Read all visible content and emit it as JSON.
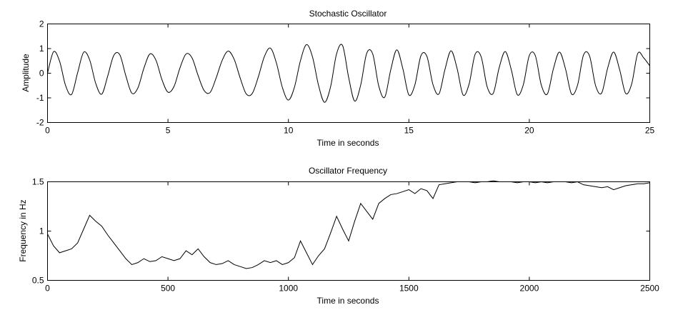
{
  "chart_data": [
    {
      "type": "line",
      "title": "Stochastic Oscillator",
      "xlabel": "Time in seconds",
      "ylabel": "Amplitude",
      "xlim": [
        0,
        25
      ],
      "ylim": [
        -2,
        2
      ],
      "xticks": [
        "0",
        "5",
        "10",
        "15",
        "20",
        "25"
      ],
      "yticks": [
        "2",
        "1",
        "0",
        "-1",
        "-2"
      ],
      "grid": false,
      "series": [
        {
          "x": [
            0,
            0.25,
            0.5,
            0.75,
            1.0,
            1.25,
            1.5,
            1.75,
            2.0,
            2.25,
            2.5,
            2.75,
            3.0,
            3.25,
            3.5,
            3.75,
            4.0,
            4.25,
            4.5,
            4.75,
            5.0,
            5.25,
            5.5,
            5.75,
            6.0,
            6.25,
            6.5,
            6.75,
            7.0,
            7.25,
            7.5,
            7.75,
            8.0,
            8.25,
            8.5,
            8.75,
            9.0,
            9.25,
            9.5,
            9.75,
            10.0,
            10.25,
            10.5,
            10.75,
            11.0,
            11.25,
            11.5,
            11.75,
            12.0,
            12.25,
            12.5,
            12.75,
            13.0,
            13.25,
            13.5,
            13.75,
            14.0,
            14.25,
            14.5,
            14.75,
            15.0,
            15.25,
            15.5,
            15.75,
            16.0,
            16.25,
            16.5,
            16.75,
            17.0,
            17.25,
            17.5,
            17.75,
            18.0,
            18.25,
            18.5,
            18.75,
            19.0,
            19.25,
            19.5,
            19.75,
            20.0,
            20.25,
            20.5,
            20.75,
            21.0,
            21.25,
            21.5,
            21.75,
            22.0,
            22.25,
            22.5,
            22.75,
            23.0,
            23.25,
            23.5,
            23.75,
            24.0,
            24.25,
            24.5,
            24.75,
            25.0
          ],
          "values": [
            0,
            0.87,
            0.49,
            -0.5,
            -0.86,
            0.02,
            0.85,
            0.54,
            -0.41,
            -0.85,
            -0.11,
            0.72,
            0.75,
            -0.1,
            -0.81,
            -0.6,
            0.2,
            0.78,
            0.53,
            -0.26,
            -0.77,
            -0.54,
            0.22,
            0.78,
            0.62,
            -0.09,
            -0.7,
            -0.78,
            -0.19,
            0.52,
            0.9,
            0.56,
            -0.2,
            -0.84,
            -0.82,
            -0.15,
            0.67,
            1.02,
            0.42,
            -0.58,
            -1.09,
            -0.57,
            0.51,
            1.16,
            0.66,
            -0.49,
            -1.18,
            -0.55,
            0.79,
            1.12,
            -0.17,
            -1.13,
            -0.48,
            0.81,
            0.78,
            -0.52,
            -0.97,
            0.15,
            0.95,
            0.18,
            -0.88,
            -0.47,
            0.71,
            0.68,
            -0.46,
            -0.84,
            0.16,
            0.91,
            0.2,
            -0.88,
            -0.44,
            0.77,
            0.67,
            -0.55,
            -0.82,
            0.23,
            0.88,
            0.15,
            -0.87,
            -0.47,
            0.72,
            0.71,
            -0.49,
            -0.84,
            0.18,
            0.86,
            0.18,
            -0.84,
            -0.49,
            0.74,
            0.7,
            -0.5,
            -0.81,
            0.2,
            0.86,
            0.14,
            -0.82,
            -0.43,
            0.8,
            0.62,
            0.3
          ]
        }
      ]
    },
    {
      "type": "line",
      "title": "Oscillator Frequency",
      "xlabel": "Time in seconds",
      "ylabel": "Frequency in Hz",
      "xlim": [
        0,
        2500
      ],
      "ylim": [
        0.5,
        1.5
      ],
      "xticks": [
        "0",
        "500",
        "1000",
        "1500",
        "2000",
        "2500"
      ],
      "yticks": [
        "1.5",
        "1",
        "0.5"
      ],
      "grid": false,
      "series": [
        {
          "x": [
            0,
            25,
            50,
            75,
            100,
            125,
            150,
            175,
            200,
            225,
            250,
            275,
            300,
            325,
            350,
            375,
            400,
            425,
            450,
            475,
            500,
            525,
            550,
            575,
            600,
            625,
            650,
            675,
            700,
            725,
            750,
            775,
            800,
            825,
            850,
            875,
            900,
            925,
            950,
            975,
            1000,
            1025,
            1050,
            1075,
            1100,
            1125,
            1150,
            1175,
            1200,
            1225,
            1250,
            1275,
            1300,
            1325,
            1350,
            1375,
            1400,
            1425,
            1450,
            1475,
            1500,
            1525,
            1550,
            1575,
            1600,
            1625,
            1650,
            1675,
            1700,
            1725,
            1750,
            1775,
            1800,
            1825,
            1850,
            1875,
            1900,
            1925,
            1950,
            1975,
            2000,
            2025,
            2050,
            2075,
            2100,
            2125,
            2150,
            2175,
            2200,
            2225,
            2250,
            2275,
            2300,
            2325,
            2350,
            2375,
            2400,
            2425,
            2450,
            2475,
            2500
          ],
          "values": [
            0.97,
            0.85,
            0.78,
            0.8,
            0.82,
            0.88,
            1.02,
            1.16,
            1.1,
            1.05,
            0.96,
            0.88,
            0.8,
            0.72,
            0.66,
            0.68,
            0.72,
            0.69,
            0.7,
            0.74,
            0.72,
            0.7,
            0.72,
            0.8,
            0.76,
            0.82,
            0.74,
            0.68,
            0.66,
            0.67,
            0.7,
            0.66,
            0.64,
            0.62,
            0.63,
            0.66,
            0.7,
            0.68,
            0.7,
            0.66,
            0.68,
            0.73,
            0.9,
            0.78,
            0.66,
            0.75,
            0.82,
            0.98,
            1.15,
            1.02,
            0.9,
            1.1,
            1.28,
            1.2,
            1.12,
            1.28,
            1.33,
            1.37,
            1.38,
            1.4,
            1.42,
            1.38,
            1.43,
            1.41,
            1.33,
            1.47,
            1.48,
            1.49,
            1.5,
            1.5,
            1.5,
            1.49,
            1.5,
            1.5,
            1.51,
            1.5,
            1.5,
            1.5,
            1.49,
            1.5,
            1.5,
            1.49,
            1.5,
            1.49,
            1.5,
            1.5,
            1.5,
            1.49,
            1.5,
            1.47,
            1.46,
            1.45,
            1.44,
            1.45,
            1.42,
            1.44,
            1.46,
            1.47,
            1.48,
            1.48,
            1.49
          ]
        }
      ]
    }
  ]
}
